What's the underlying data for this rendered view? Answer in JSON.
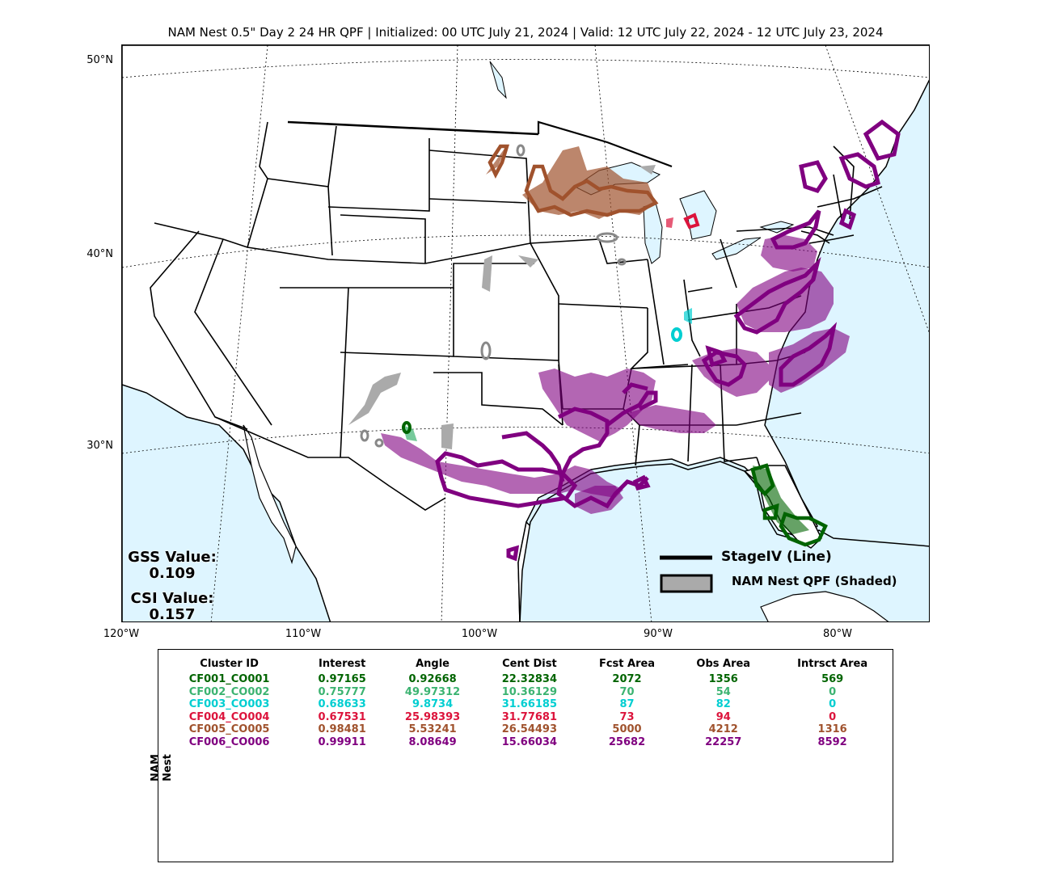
{
  "title": "NAM Nest 0.5\" Day 2 24 HR QPF | Initialized: 00 UTC July 21, 2024 | Valid: 12 UTC July 22, 2024 - 12 UTC July 23, 2024",
  "lat_labels": [
    "50°N",
    "40°N",
    "30°N"
  ],
  "lon_labels": [
    "120°W",
    "110°W",
    "100°W",
    "90°W",
    "80°W"
  ],
  "scores": {
    "gss_label": "GSS Value:",
    "gss_value": "0.109",
    "csi_label": "CSI Value:",
    "csi_value": "0.157"
  },
  "legend": {
    "line_label": "StageIV (Line)",
    "shaded_label": "NAM Nest QPF (Shaded)"
  },
  "colors": {
    "ocean": "#def5ff",
    "land": "#ffffff",
    "unmatched": "#aaaaaa",
    "CF001": "#006400",
    "CF002": "#3cb371",
    "CF003": "#00ced1",
    "CF004": "#dc143c",
    "CF005": "#a0522d",
    "CF006": "#800080"
  },
  "table": {
    "side_label": "NAM Nest",
    "headers": [
      "Cluster ID",
      "Interest",
      "Angle",
      "Cent Dist",
      "Fcst Area",
      "Obs Area",
      "Intrsct Area"
    ],
    "rows": [
      {
        "color": "#006400",
        "cells": [
          "CF001_CO001",
          "0.97165",
          "0.92668",
          "22.32834",
          "2072",
          "1356",
          "569"
        ]
      },
      {
        "color": "#3cb371",
        "cells": [
          "CF002_CO002",
          "0.75777",
          "49.97312",
          "10.36129",
          "70",
          "54",
          "0"
        ]
      },
      {
        "color": "#00ced1",
        "cells": [
          "CF003_CO003",
          "0.68633",
          "9.8734",
          "31.66185",
          "87",
          "82",
          "0"
        ]
      },
      {
        "color": "#dc143c",
        "cells": [
          "CF004_CO004",
          "0.67531",
          "25.98393",
          "31.77681",
          "73",
          "94",
          "0"
        ]
      },
      {
        "color": "#a0522d",
        "cells": [
          "CF005_CO005",
          "0.98481",
          "5.53241",
          "26.54493",
          "5000",
          "4212",
          "1316"
        ]
      },
      {
        "color": "#800080",
        "cells": [
          "CF006_CO006",
          "0.99911",
          "8.08649",
          "15.66034",
          "25682",
          "22257",
          "8592"
        ]
      }
    ]
  }
}
